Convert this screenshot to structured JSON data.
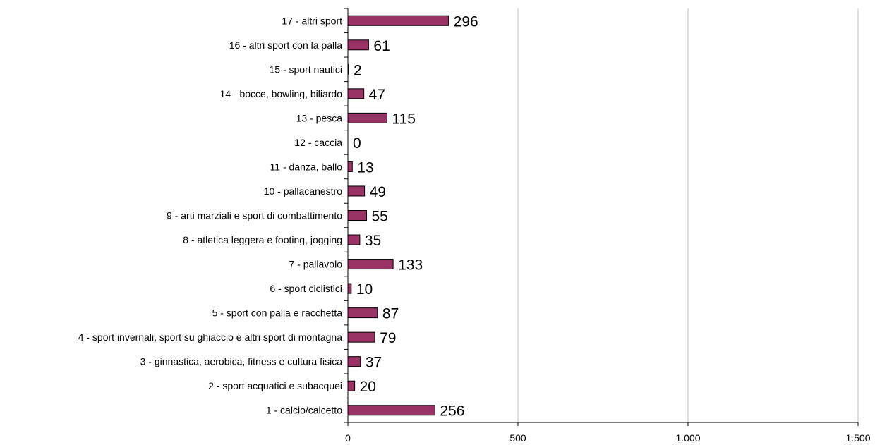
{
  "chart_data": {
    "type": "bar",
    "orientation": "horizontal",
    "title": "",
    "xlabel": "",
    "ylabel": "",
    "categories": [
      "1 - calcio/calcetto",
      "2 - sport acquatici e subacquei",
      "3 - ginnastica, aerobica, fitness e cultura fisica",
      "4 - sport invernali, sport su ghiaccio e altri sport di montagna",
      "5 - sport con palla e racchetta",
      "6 - sport ciclistici",
      "7 - pallavolo",
      "8 - atletica leggera e footing, jogging",
      "9 - arti marziali e sport di combattimento",
      "10 - pallacanestro",
      "11 - danza, ballo",
      "12 - caccia",
      "13 - pesca",
      "14 - bocce, bowling, biliardo",
      "15 - sport nautici",
      "16 - altri sport con la palla",
      "17 - altri sport"
    ],
    "values": [
      256,
      20,
      37,
      79,
      87,
      10,
      133,
      35,
      55,
      49,
      13,
      0,
      115,
      47,
      2,
      61,
      296
    ],
    "data_labels": [
      "256",
      "20",
      "37",
      "79",
      "87",
      "10",
      "133",
      "35",
      "55",
      "49",
      "13",
      "0",
      "115",
      "47",
      "2",
      "61",
      "296"
    ],
    "xlim": [
      0,
      1500
    ],
    "xticks": [
      0,
      500,
      1000,
      1500
    ],
    "xtick_labels": [
      "0",
      "500",
      "1.000",
      "1.500"
    ],
    "grid": "vertical",
    "legend": "none",
    "colors": {
      "bar_fill": "#993366",
      "bar_stroke": "#000000",
      "grid": "#c0c0c0",
      "axis": "#000000"
    }
  }
}
